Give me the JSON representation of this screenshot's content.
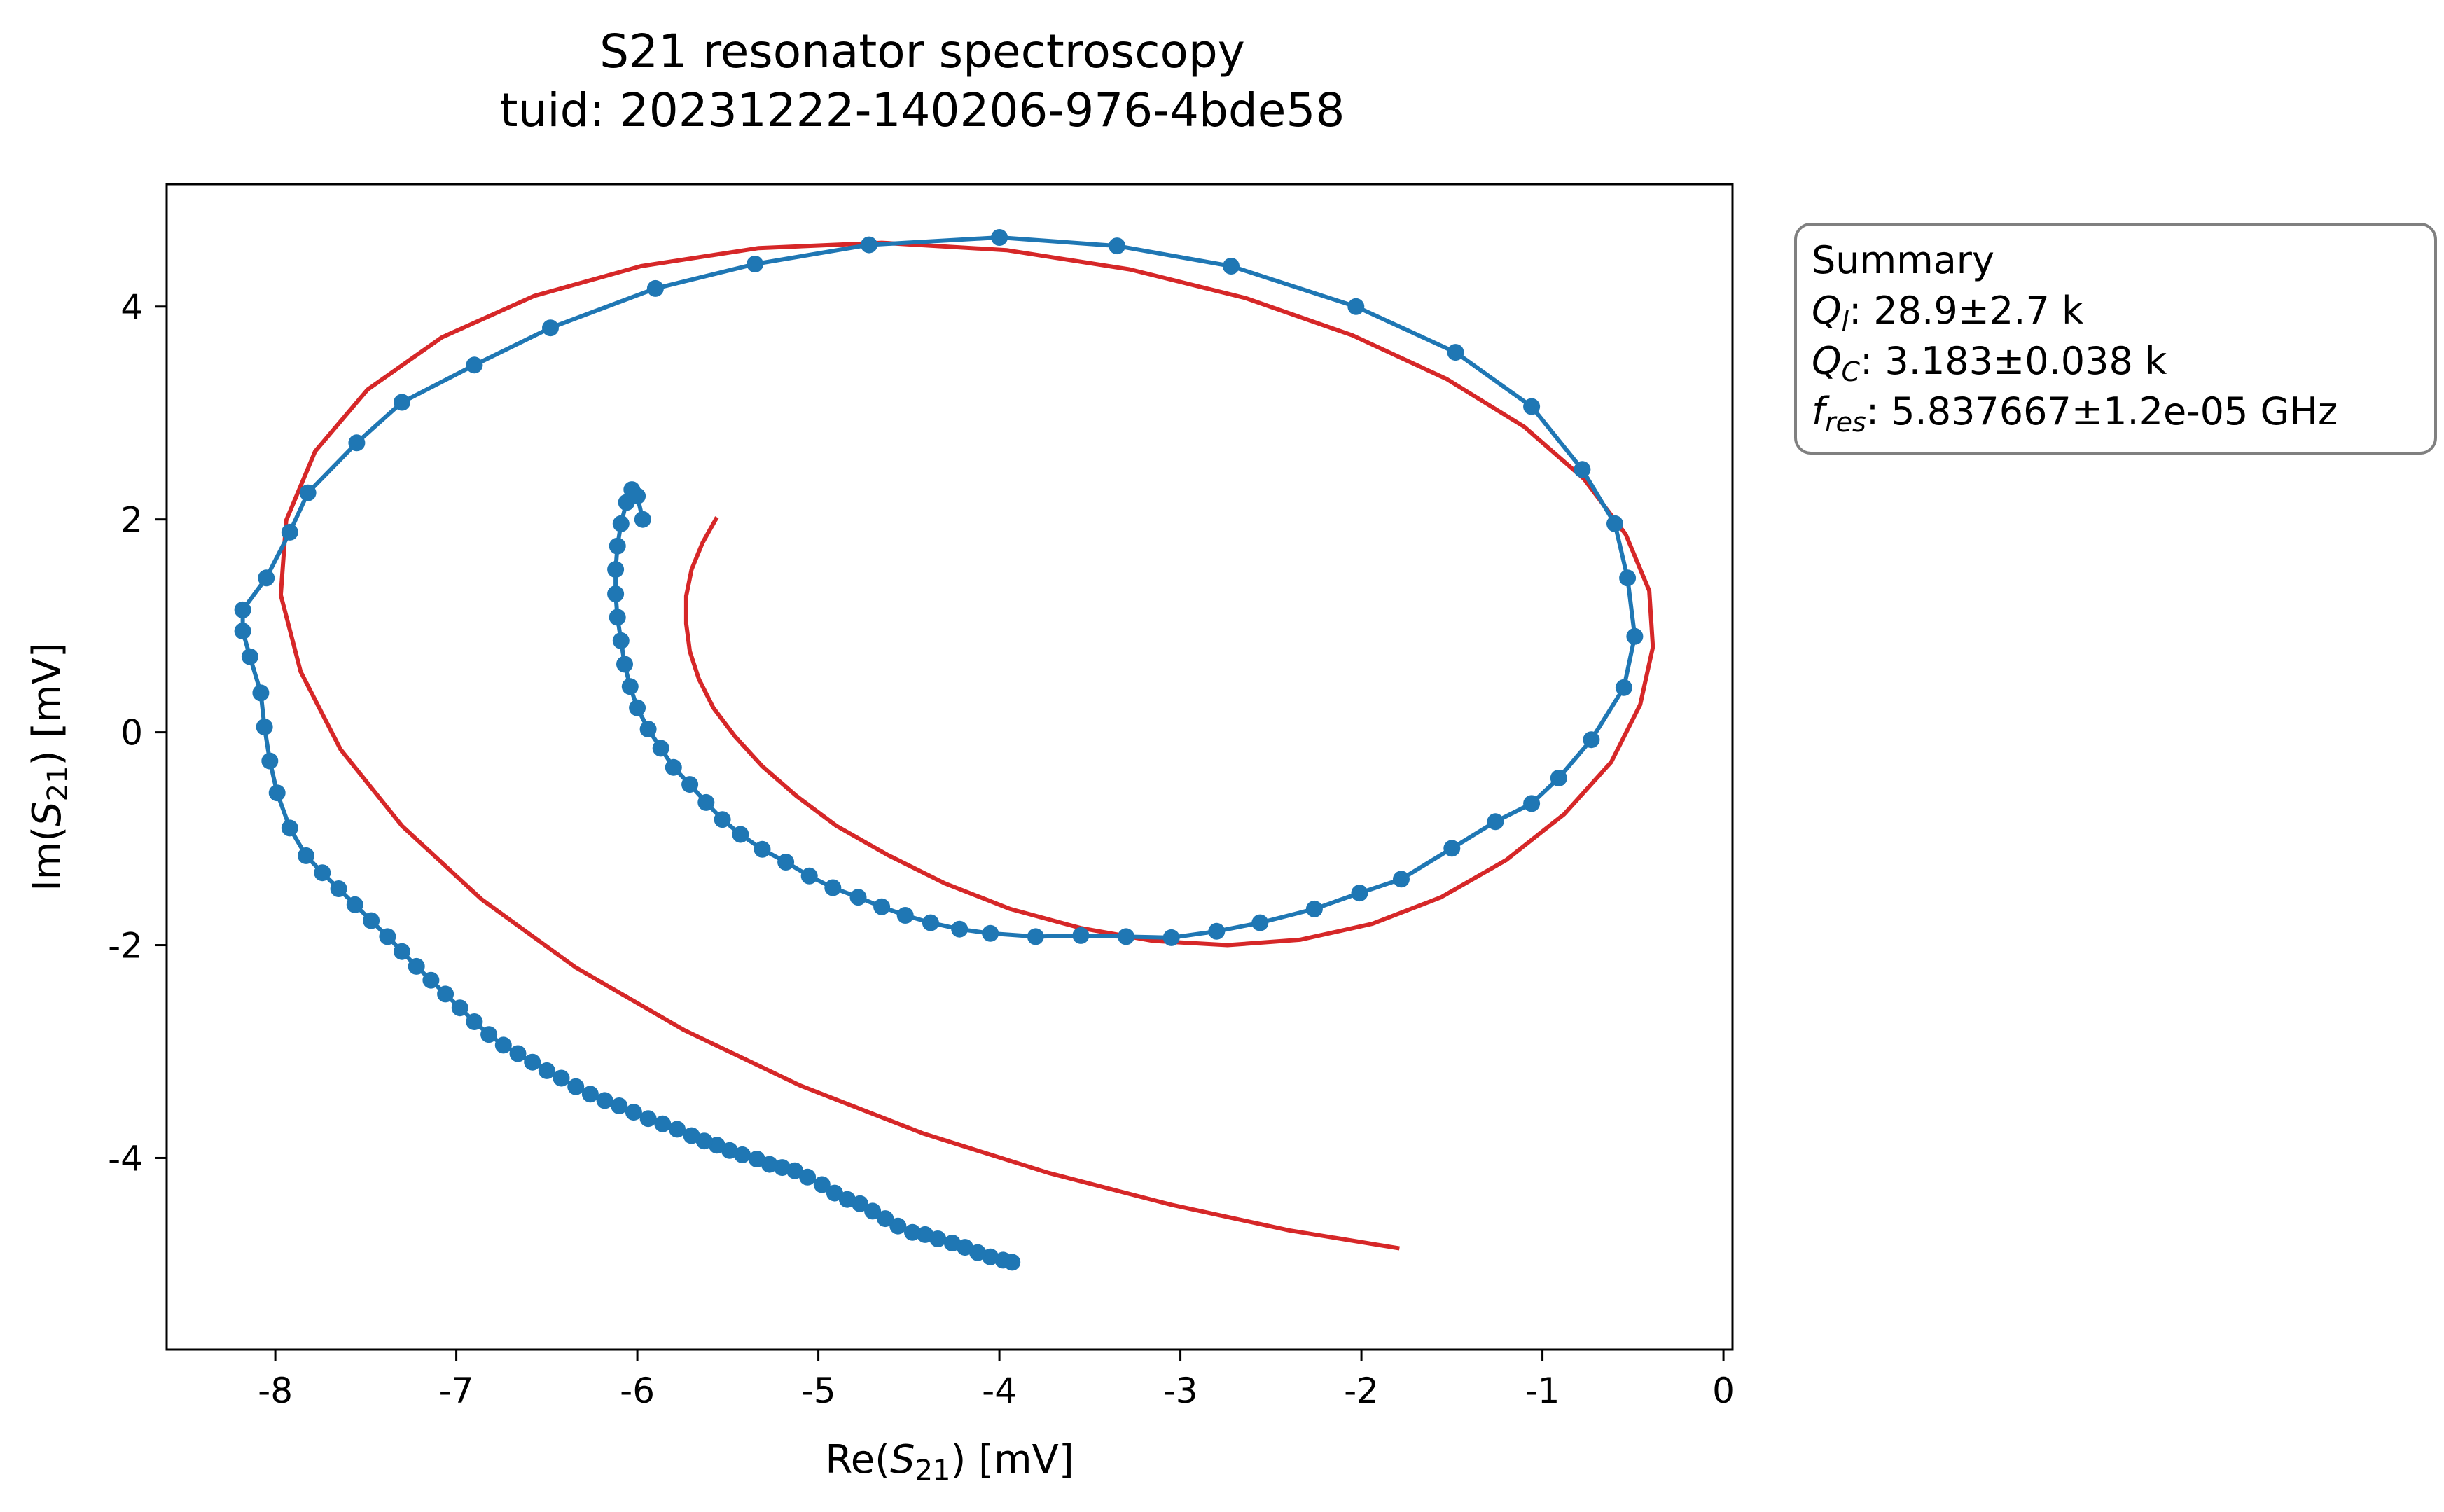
{
  "chart_data": {
    "type": "scatter",
    "title": "S21 resonator spectroscopy",
    "subtitle": "tuid: 20231222-140206-976-4bde58",
    "xlabel": {
      "prefix": "Re(",
      "var": "S",
      "sub": "21",
      "suffix": ") [mV]"
    },
    "ylabel": {
      "prefix": "Im(",
      "var": "S",
      "sub": "21",
      "suffix": ") [mV]"
    },
    "xlim": [
      -8.6,
      0.05
    ],
    "ylim": [
      -5.8,
      5.15
    ],
    "xticks": [
      {
        "value": -8,
        "label": "-8"
      },
      {
        "value": -7,
        "label": "-7"
      },
      {
        "value": -6,
        "label": "-6"
      },
      {
        "value": -5,
        "label": "-5"
      },
      {
        "value": -4,
        "label": "-4"
      },
      {
        "value": -3,
        "label": "-3"
      },
      {
        "value": -2,
        "label": "-2"
      },
      {
        "value": -1,
        "label": "-1"
      },
      {
        "value": 0,
        "label": "0"
      }
    ],
    "yticks": [
      {
        "value": 4,
        "label": "4"
      },
      {
        "value": 2,
        "label": "2"
      },
      {
        "value": 0,
        "label": "0"
      },
      {
        "value": -2,
        "label": "-2"
      },
      {
        "value": -4,
        "label": "-4"
      }
    ],
    "grid": false,
    "colors": {
      "data": "#1f77b4",
      "fit": "#d62728"
    },
    "series": [
      {
        "kind": "line-with-markers",
        "color": "#1f77b4",
        "points": [
          [
            -3.93,
            -4.98
          ],
          [
            -3.98,
            -4.96
          ],
          [
            -4.05,
            -4.93
          ],
          [
            -4.12,
            -4.89
          ],
          [
            -4.19,
            -4.84
          ],
          [
            -4.26,
            -4.8
          ],
          [
            -4.34,
            -4.76
          ],
          [
            -4.41,
            -4.72
          ],
          [
            -4.48,
            -4.7
          ],
          [
            -4.56,
            -4.64
          ],
          [
            -4.63,
            -4.57
          ],
          [
            -4.7,
            -4.5
          ],
          [
            -4.77,
            -4.43
          ],
          [
            -4.84,
            -4.39
          ],
          [
            -4.91,
            -4.33
          ],
          [
            -4.98,
            -4.25
          ],
          [
            -5.06,
            -4.18
          ],
          [
            -5.13,
            -4.12
          ],
          [
            -5.2,
            -4.09
          ],
          [
            -5.27,
            -4.06
          ],
          [
            -5.34,
            -4.01
          ],
          [
            -5.42,
            -3.97
          ],
          [
            -5.49,
            -3.93
          ],
          [
            -5.56,
            -3.88
          ],
          [
            -5.63,
            -3.84
          ],
          [
            -5.7,
            -3.79
          ],
          [
            -5.78,
            -3.73
          ],
          [
            -5.86,
            -3.68
          ],
          [
            -5.94,
            -3.63
          ],
          [
            -6.02,
            -3.57
          ],
          [
            -6.1,
            -3.51
          ],
          [
            -6.18,
            -3.46
          ],
          [
            -6.26,
            -3.4
          ],
          [
            -6.34,
            -3.33
          ],
          [
            -6.42,
            -3.25
          ],
          [
            -6.5,
            -3.18
          ],
          [
            -6.58,
            -3.1
          ],
          [
            -6.66,
            -3.02
          ],
          [
            -6.74,
            -2.94
          ],
          [
            -6.82,
            -2.84
          ],
          [
            -6.9,
            -2.72
          ],
          [
            -6.98,
            -2.59
          ],
          [
            -7.06,
            -2.46
          ],
          [
            -7.14,
            -2.33
          ],
          [
            -7.22,
            -2.2
          ],
          [
            -7.3,
            -2.06
          ],
          [
            -7.38,
            -1.92
          ],
          [
            -7.47,
            -1.77
          ],
          [
            -7.56,
            -1.62
          ],
          [
            -7.65,
            -1.47
          ],
          [
            -7.74,
            -1.32
          ],
          [
            -7.83,
            -1.16
          ],
          [
            -7.92,
            -0.9
          ],
          [
            -7.99,
            -0.57
          ],
          [
            -8.03,
            -0.27
          ],
          [
            -8.06,
            0.05
          ],
          [
            -8.08,
            0.37
          ],
          [
            -8.14,
            0.71
          ],
          [
            -8.18,
            0.95
          ],
          [
            -8.18,
            1.15
          ],
          [
            -8.05,
            1.45
          ],
          [
            -7.92,
            1.88
          ],
          [
            -7.82,
            2.25
          ],
          [
            -7.55,
            2.72
          ],
          [
            -7.3,
            3.1
          ],
          [
            -6.9,
            3.45
          ],
          [
            -6.48,
            3.8
          ],
          [
            -5.9,
            4.17
          ],
          [
            -5.35,
            4.4
          ],
          [
            -4.72,
            4.58
          ],
          [
            -4.0,
            4.65
          ],
          [
            -3.35,
            4.57
          ],
          [
            -2.72,
            4.38
          ],
          [
            -2.03,
            4.0
          ],
          [
            -1.48,
            3.57
          ],
          [
            -1.06,
            3.06
          ],
          [
            -0.78,
            2.47
          ],
          [
            -0.6,
            1.96
          ],
          [
            -0.53,
            1.45
          ],
          [
            -0.49,
            0.9
          ],
          [
            -0.55,
            0.42
          ],
          [
            -0.73,
            -0.07
          ],
          [
            -0.91,
            -0.43
          ],
          [
            -1.06,
            -0.67
          ],
          [
            -1.26,
            -0.84
          ],
          [
            -1.5,
            -1.09
          ],
          [
            -1.78,
            -1.38
          ],
          [
            -2.01,
            -1.51
          ],
          [
            -2.26,
            -1.66
          ],
          [
            -2.56,
            -1.79
          ],
          [
            -2.8,
            -1.87
          ],
          [
            -3.05,
            -1.93
          ],
          [
            -3.3,
            -1.92
          ],
          [
            -3.55,
            -1.91
          ],
          [
            -3.8,
            -1.92
          ],
          [
            -4.05,
            -1.89
          ],
          [
            -4.22,
            -1.85
          ],
          [
            -4.38,
            -1.79
          ],
          [
            -4.52,
            -1.72
          ],
          [
            -4.65,
            -1.64
          ],
          [
            -4.78,
            -1.55
          ],
          [
            -4.92,
            -1.46
          ],
          [
            -5.05,
            -1.35
          ],
          [
            -5.18,
            -1.22
          ],
          [
            -5.31,
            -1.1
          ],
          [
            -5.43,
            -0.96
          ],
          [
            -5.53,
            -0.82
          ],
          [
            -5.62,
            -0.66
          ],
          [
            -5.71,
            -0.49
          ],
          [
            -5.8,
            -0.33
          ],
          [
            -5.87,
            -0.15
          ],
          [
            -5.94,
            0.03
          ],
          [
            -6.0,
            0.23
          ],
          [
            -6.04,
            0.43
          ],
          [
            -6.07,
            0.64
          ],
          [
            -6.09,
            0.86
          ],
          [
            -6.11,
            1.08
          ],
          [
            -6.12,
            1.3
          ],
          [
            -6.12,
            1.53
          ],
          [
            -6.11,
            1.75
          ],
          [
            -6.09,
            1.96
          ],
          [
            -6.06,
            2.16
          ],
          [
            -6.03,
            2.28
          ],
          [
            -6.0,
            2.22
          ],
          [
            -5.97,
            2.0
          ]
        ]
      },
      {
        "kind": "fit-line",
        "color": "#d62728",
        "points": [
          [
            -5.56,
            2.02
          ],
          [
            -5.64,
            1.78
          ],
          [
            -5.7,
            1.53
          ],
          [
            -5.73,
            1.28
          ],
          [
            -5.73,
            1.02
          ],
          [
            -5.71,
            0.76
          ],
          [
            -5.66,
            0.5
          ],
          [
            -5.58,
            0.23
          ],
          [
            -5.46,
            -0.04
          ],
          [
            -5.31,
            -0.32
          ],
          [
            -5.12,
            -0.6
          ],
          [
            -4.9,
            -0.88
          ],
          [
            -4.62,
            -1.15
          ],
          [
            -4.3,
            -1.42
          ],
          [
            -3.94,
            -1.66
          ],
          [
            -3.55,
            -1.84
          ],
          [
            -3.15,
            -1.96
          ],
          [
            -2.74,
            -2.0
          ],
          [
            -2.34,
            -1.95
          ],
          [
            -1.94,
            -1.8
          ],
          [
            -1.56,
            -1.55
          ],
          [
            -1.2,
            -1.2
          ],
          [
            -0.88,
            -0.77
          ],
          [
            -0.62,
            -0.28
          ],
          [
            -0.46,
            0.26
          ],
          [
            -0.39,
            0.8
          ],
          [
            -0.41,
            1.33
          ],
          [
            -0.54,
            1.86
          ],
          [
            -0.77,
            2.38
          ],
          [
            -1.1,
            2.87
          ],
          [
            -1.53,
            3.32
          ],
          [
            -2.05,
            3.73
          ],
          [
            -2.64,
            4.08
          ],
          [
            -3.28,
            4.35
          ],
          [
            -3.96,
            4.53
          ],
          [
            -4.65,
            4.6
          ],
          [
            -5.33,
            4.55
          ],
          [
            -5.98,
            4.38
          ],
          [
            -6.57,
            4.1
          ],
          [
            -7.08,
            3.71
          ],
          [
            -7.49,
            3.22
          ],
          [
            -7.78,
            2.64
          ],
          [
            -7.94,
            1.99
          ],
          [
            -7.97,
            1.29
          ],
          [
            -7.86,
            0.57
          ],
          [
            -7.64,
            -0.16
          ],
          [
            -7.3,
            -0.88
          ],
          [
            -6.86,
            -1.57
          ],
          [
            -6.34,
            -2.21
          ],
          [
            -5.74,
            -2.8
          ],
          [
            -5.1,
            -3.32
          ],
          [
            -4.42,
            -3.77
          ],
          [
            -3.73,
            -4.14
          ],
          [
            -3.05,
            -4.44
          ],
          [
            -2.4,
            -4.68
          ],
          [
            -1.79,
            -4.85
          ]
        ]
      }
    ]
  },
  "summary_box": {
    "heading": "Summary",
    "rows": [
      {
        "var": "Q",
        "sub": "l",
        "text": ": 28.9±2.7 k"
      },
      {
        "var": "Q",
        "sub": "C",
        "text": ": 3.183±0.038 k"
      },
      {
        "var": "f",
        "sub": "res",
        "text": ": 5.837667±1.2e-05 GHz"
      }
    ]
  }
}
